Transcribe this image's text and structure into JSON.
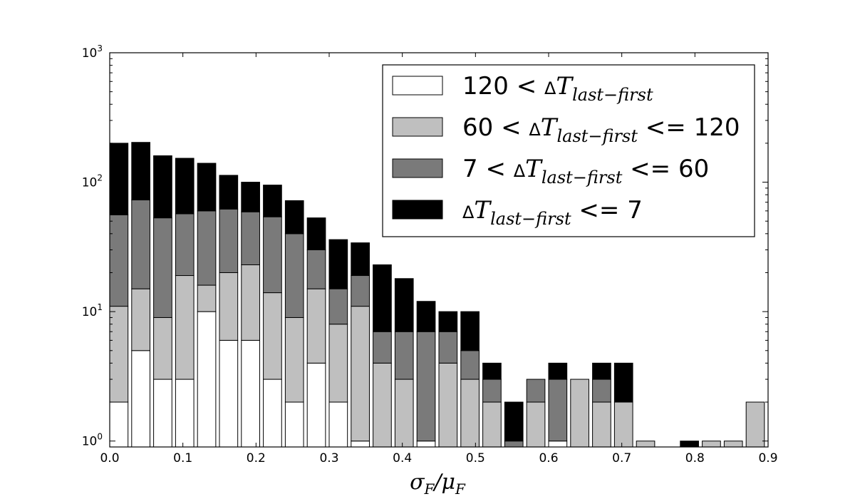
{
  "chart_data": {
    "type": "bar",
    "stacked": true,
    "title": "",
    "xlabel": "σ_F/μ_F",
    "xlabel_parts": {
      "a": "σ",
      "a_sub": "F",
      "slash": "/",
      "b": "μ",
      "b_sub": "F"
    },
    "ylabel": "",
    "y_scale": "log",
    "ylim": [
      0.9,
      1000
    ],
    "xlim": [
      0.0,
      0.9
    ],
    "bar_width": 0.025,
    "grid": false,
    "legend_position": "top-right",
    "x_ticks": [
      "0.0",
      "0.1",
      "0.2",
      "0.3",
      "0.4",
      "0.5",
      "0.6",
      "0.7",
      "0.8",
      "0.9"
    ],
    "y_ticks": [
      {
        "value": 1,
        "base": "10",
        "exp": "0"
      },
      {
        "value": 10,
        "base": "10",
        "exp": "1"
      },
      {
        "value": 100,
        "base": "10",
        "exp": "2"
      },
      {
        "value": 1000,
        "base": "10",
        "exp": "3"
      }
    ],
    "x": [
      0.0,
      0.03,
      0.06,
      0.09,
      0.12,
      0.15,
      0.18,
      0.21,
      0.24,
      0.27,
      0.3,
      0.33,
      0.36,
      0.39,
      0.42,
      0.45,
      0.48,
      0.51,
      0.54,
      0.57,
      0.6,
      0.63,
      0.66,
      0.69,
      0.72,
      0.75,
      0.78,
      0.81,
      0.84,
      0.87
    ],
    "series": [
      {
        "name": "120 < ΔT_last−first",
        "color": "#ffffff",
        "values": [
          2,
          5,
          3,
          3,
          10,
          6,
          6,
          3,
          2,
          4,
          2,
          1,
          0,
          0,
          1,
          0,
          0,
          0,
          0,
          0,
          1,
          0,
          0,
          0,
          0,
          0,
          0,
          0,
          0,
          0
        ]
      },
      {
        "name": "60 < ΔT_last−first <= 120",
        "color": "#bfbfbf",
        "values": [
          9,
          10,
          6,
          16,
          6,
          14,
          17,
          11,
          7,
          11,
          6,
          10,
          4,
          3,
          0,
          4,
          3,
          2,
          0,
          2,
          0,
          3,
          2,
          2,
          1,
          0,
          0,
          1,
          1,
          2
        ]
      },
      {
        "name": "7 < ΔT_last−first <= 60",
        "color": "#7a7a7a",
        "values": [
          45,
          58,
          44,
          38,
          44,
          42,
          36,
          40,
          31,
          15,
          7,
          8,
          3,
          4,
          6,
          3,
          2,
          1,
          1,
          1,
          2,
          0,
          1,
          0,
          0,
          0,
          0,
          0,
          0,
          0
        ]
      },
      {
        "name": "ΔT_last−first <= 7",
        "color": "#000000",
        "values": [
          144,
          130,
          107,
          96,
          80,
          51,
          41,
          41,
          32,
          23,
          21,
          15,
          16,
          11,
          5,
          3,
          5,
          1,
          1,
          0,
          1,
          0,
          1,
          2,
          0,
          0,
          1,
          0,
          0,
          0
        ]
      }
    ],
    "legend": [
      {
        "color": "#ffffff",
        "pre": "120 < ",
        "delta": "Δ",
        "T": "T",
        "sub": "last−first",
        "post": ""
      },
      {
        "color": "#bfbfbf",
        "pre": "60 < ",
        "delta": "Δ",
        "T": "T",
        "sub": "last−first",
        "post": " <= 120"
      },
      {
        "color": "#7a7a7a",
        "pre": "7 < ",
        "delta": "Δ",
        "T": "T",
        "sub": "last−first",
        "post": " <= 60"
      },
      {
        "color": "#000000",
        "pre": "",
        "delta": "Δ",
        "T": "T",
        "sub": "last−first",
        "post": " <= 7"
      }
    ]
  }
}
